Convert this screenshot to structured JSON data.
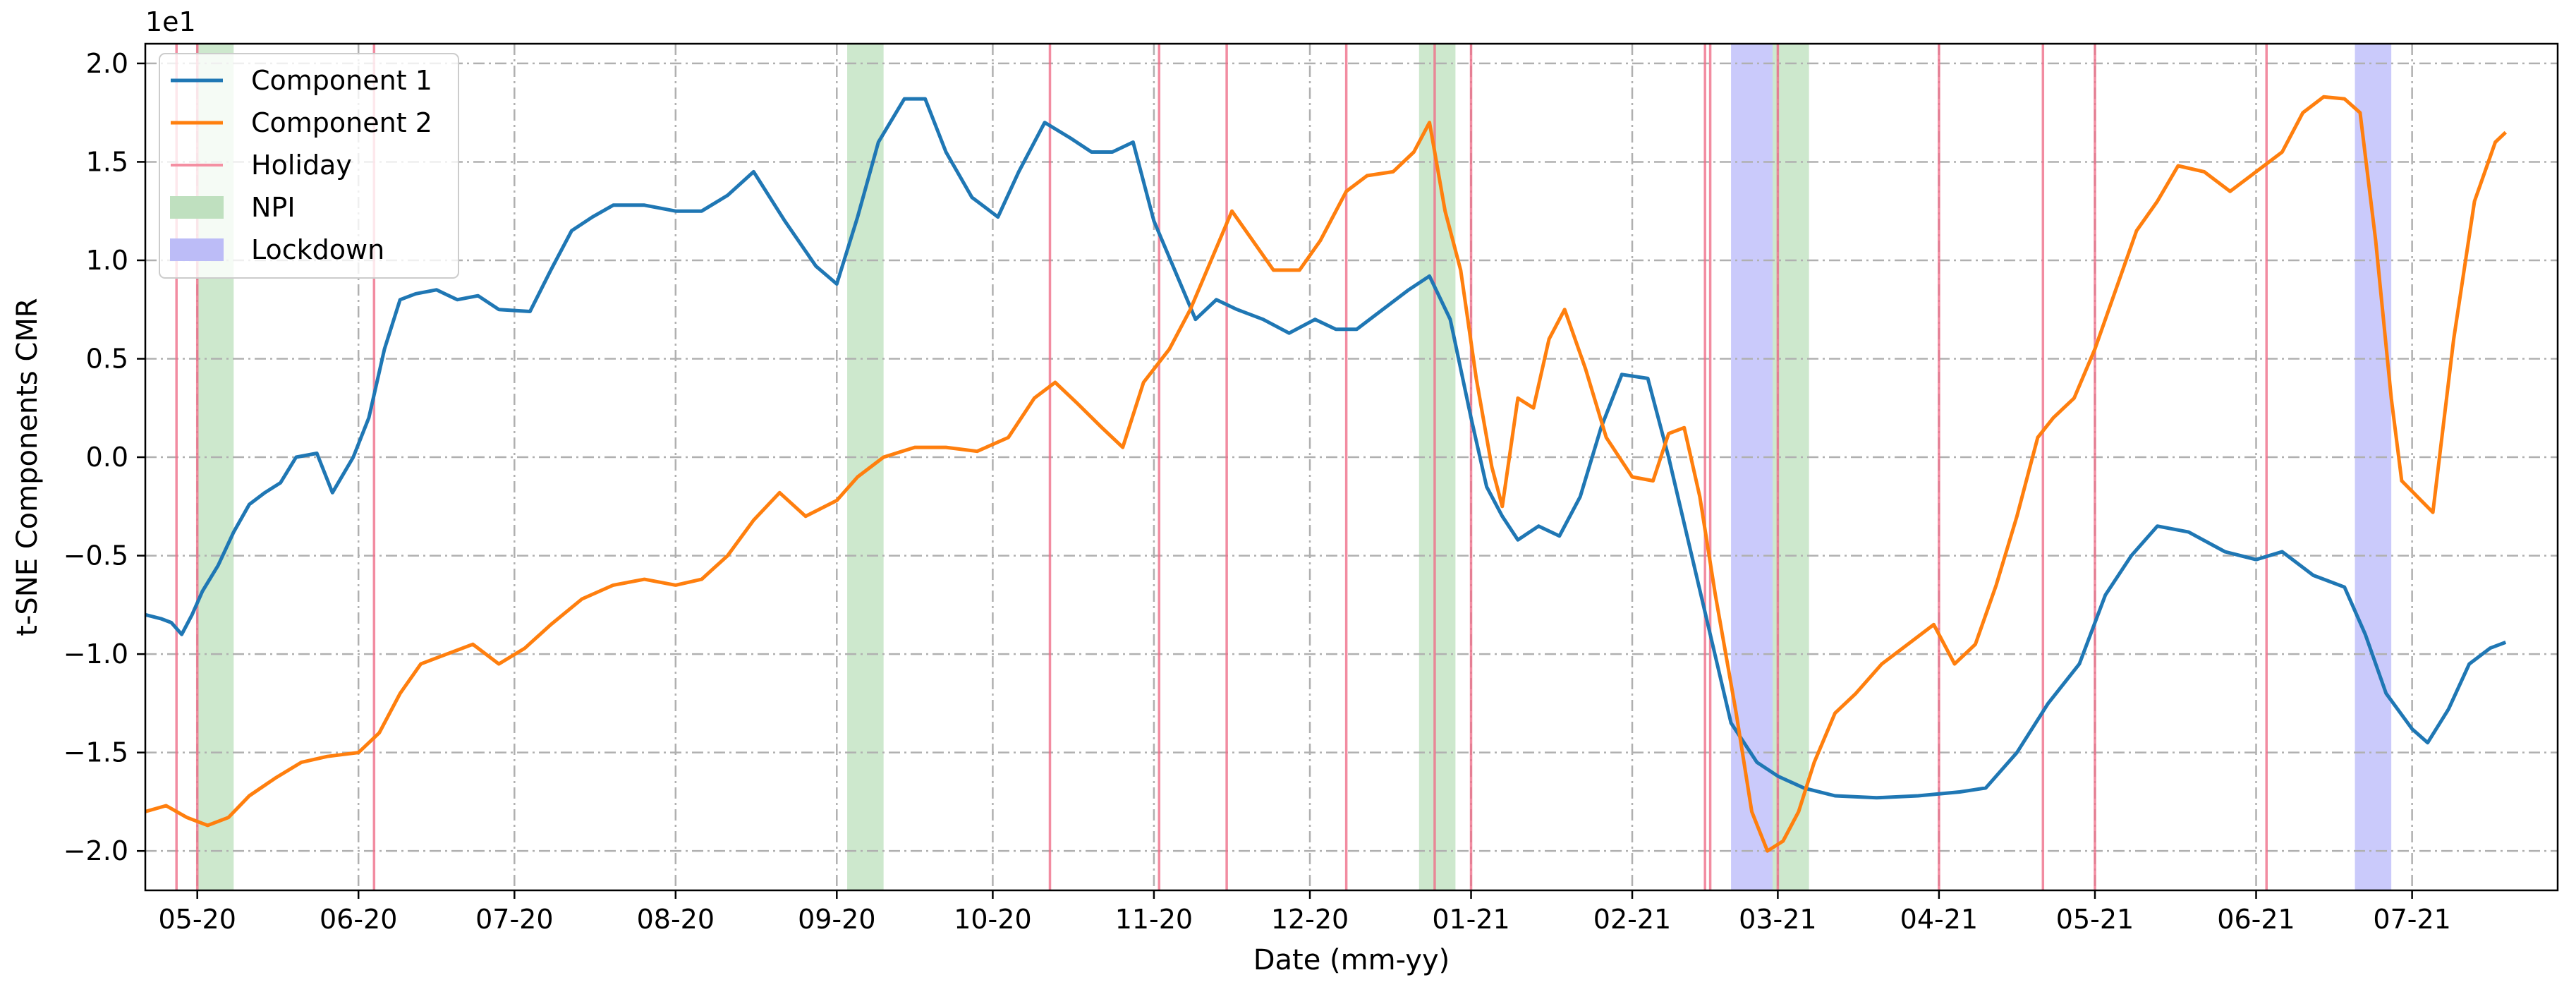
{
  "chart_data": {
    "type": "line",
    "xlabel": "Date (mm-yy)",
    "ylabel": "t-SNE Components CMR",
    "offset_text": "1e1",
    "x_range": [
      "2020-04-21",
      "2021-07-29"
    ],
    "ylim": [
      -2.2,
      2.1
    ],
    "grid": true,
    "legend_position": "upper-left",
    "x_ticks": [
      {
        "date": "2020-05-01",
        "label": "05-20"
      },
      {
        "date": "2020-06-01",
        "label": "06-20"
      },
      {
        "date": "2020-07-01",
        "label": "07-20"
      },
      {
        "date": "2020-08-01",
        "label": "08-20"
      },
      {
        "date": "2020-09-01",
        "label": "09-20"
      },
      {
        "date": "2020-10-01",
        "label": "10-20"
      },
      {
        "date": "2020-11-01",
        "label": "11-20"
      },
      {
        "date": "2020-12-01",
        "label": "12-20"
      },
      {
        "date": "2021-01-01",
        "label": "01-21"
      },
      {
        "date": "2021-02-01",
        "label": "02-21"
      },
      {
        "date": "2021-03-01",
        "label": "03-21"
      },
      {
        "date": "2021-04-01",
        "label": "04-21"
      },
      {
        "date": "2021-05-01",
        "label": "05-21"
      },
      {
        "date": "2021-06-01",
        "label": "06-21"
      },
      {
        "date": "2021-07-01",
        "label": "07-21"
      }
    ],
    "y_ticks": [
      {
        "value": -2.0,
        "label": "−2.0"
      },
      {
        "value": -1.5,
        "label": "−1.5"
      },
      {
        "value": -1.0,
        "label": "−1.0"
      },
      {
        "value": -0.5,
        "label": "−0.5"
      },
      {
        "value": 0.0,
        "label": "0.0"
      },
      {
        "value": 0.5,
        "label": "0.5"
      },
      {
        "value": 1.0,
        "label": "1.0"
      },
      {
        "value": 1.5,
        "label": "1.5"
      },
      {
        "value": 2.0,
        "label": "2.0"
      }
    ],
    "legend": [
      {
        "label": "Component 1",
        "kind": "line",
        "color": "#1f77b4"
      },
      {
        "label": "Component 2",
        "kind": "line",
        "color": "#ff7f0e"
      },
      {
        "label": "Holiday",
        "kind": "vline",
        "color": "#f48fa2"
      },
      {
        "label": "NPI",
        "kind": "span",
        "color": "#bfe0bf"
      },
      {
        "label": "Lockdown",
        "kind": "span",
        "color": "#bcbcf7"
      }
    ],
    "holidays": [
      "2020-04-27",
      "2020-05-01",
      "2020-06-04",
      "2020-10-12",
      "2020-11-02",
      "2020-11-15",
      "2020-12-08",
      "2020-12-25",
      "2021-01-01",
      "2021-02-15",
      "2021-02-16",
      "2021-03-01",
      "2021-04-01",
      "2021-04-21",
      "2021-05-01",
      "2021-06-03"
    ],
    "npi_periods": [
      {
        "start": "2020-05-01",
        "end": "2020-05-08"
      },
      {
        "start": "2020-09-03",
        "end": "2020-09-10"
      },
      {
        "start": "2020-12-22",
        "end": "2020-12-29"
      },
      {
        "start": "2021-02-28",
        "end": "2021-03-07"
      }
    ],
    "lockdown_periods": [
      {
        "start": "2021-02-20",
        "end": "2021-02-28"
      },
      {
        "start": "2021-06-20",
        "end": "2021-06-27"
      }
    ],
    "series": [
      {
        "name": "Component 1",
        "color": "#1f77b4",
        "points": [
          [
            "2020-04-21",
            -0.8
          ],
          [
            "2020-04-24",
            -0.82
          ],
          [
            "2020-04-26",
            -0.84
          ],
          [
            "2020-04-28",
            -0.9
          ],
          [
            "2020-04-30",
            -0.8
          ],
          [
            "2020-05-02",
            -0.68
          ],
          [
            "2020-05-05",
            -0.55
          ],
          [
            "2020-05-08",
            -0.38
          ],
          [
            "2020-05-11",
            -0.24
          ],
          [
            "2020-05-14",
            -0.18
          ],
          [
            "2020-05-17",
            -0.13
          ],
          [
            "2020-05-20",
            0.0
          ],
          [
            "2020-05-24",
            0.02
          ],
          [
            "2020-05-27",
            -0.18
          ],
          [
            "2020-05-31",
            0.0
          ],
          [
            "2020-06-03",
            0.2
          ],
          [
            "2020-06-06",
            0.55
          ],
          [
            "2020-06-09",
            0.8
          ],
          [
            "2020-06-12",
            0.83
          ],
          [
            "2020-06-16",
            0.85
          ],
          [
            "2020-06-20",
            0.8
          ],
          [
            "2020-06-24",
            0.82
          ],
          [
            "2020-06-28",
            0.75
          ],
          [
            "2020-07-04",
            0.74
          ],
          [
            "2020-07-08",
            0.95
          ],
          [
            "2020-07-12",
            1.15
          ],
          [
            "2020-07-16",
            1.22
          ],
          [
            "2020-07-20",
            1.28
          ],
          [
            "2020-07-26",
            1.28
          ],
          [
            "2020-08-01",
            1.25
          ],
          [
            "2020-08-06",
            1.25
          ],
          [
            "2020-08-11",
            1.33
          ],
          [
            "2020-08-16",
            1.45
          ],
          [
            "2020-08-22",
            1.2
          ],
          [
            "2020-08-28",
            0.97
          ],
          [
            "2020-09-01",
            0.88
          ],
          [
            "2020-09-05",
            1.22
          ],
          [
            "2020-09-09",
            1.6
          ],
          [
            "2020-09-14",
            1.82
          ],
          [
            "2020-09-18",
            1.82
          ],
          [
            "2020-09-22",
            1.55
          ],
          [
            "2020-09-27",
            1.32
          ],
          [
            "2020-10-02",
            1.22
          ],
          [
            "2020-10-06",
            1.45
          ],
          [
            "2020-10-11",
            1.7
          ],
          [
            "2020-10-16",
            1.62
          ],
          [
            "2020-10-20",
            1.55
          ],
          [
            "2020-10-24",
            1.55
          ],
          [
            "2020-10-28",
            1.6
          ],
          [
            "2020-11-01",
            1.2
          ],
          [
            "2020-11-05",
            0.95
          ],
          [
            "2020-11-09",
            0.7
          ],
          [
            "2020-11-13",
            0.8
          ],
          [
            "2020-11-17",
            0.75
          ],
          [
            "2020-11-22",
            0.7
          ],
          [
            "2020-11-27",
            0.63
          ],
          [
            "2020-12-02",
            0.7
          ],
          [
            "2020-12-06",
            0.65
          ],
          [
            "2020-12-10",
            0.65
          ],
          [
            "2020-12-15",
            0.75
          ],
          [
            "2020-12-20",
            0.85
          ],
          [
            "2020-12-24",
            0.92
          ],
          [
            "2020-12-28",
            0.7
          ],
          [
            "2021-01-01",
            0.2
          ],
          [
            "2021-01-04",
            -0.15
          ],
          [
            "2021-01-07",
            -0.3
          ],
          [
            "2021-01-10",
            -0.42
          ],
          [
            "2021-01-14",
            -0.35
          ],
          [
            "2021-01-18",
            -0.4
          ],
          [
            "2021-01-22",
            -0.2
          ],
          [
            "2021-01-26",
            0.15
          ],
          [
            "2021-01-30",
            0.42
          ],
          [
            "2021-02-04",
            0.4
          ],
          [
            "2021-02-08",
            0.0
          ],
          [
            "2021-02-12",
            -0.45
          ],
          [
            "2021-02-16",
            -0.9
          ],
          [
            "2021-02-20",
            -1.35
          ],
          [
            "2021-02-25",
            -1.55
          ],
          [
            "2021-03-01",
            -1.62
          ],
          [
            "2021-03-06",
            -1.68
          ],
          [
            "2021-03-12",
            -1.72
          ],
          [
            "2021-03-20",
            -1.73
          ],
          [
            "2021-03-28",
            -1.72
          ],
          [
            "2021-04-05",
            -1.7
          ],
          [
            "2021-04-10",
            -1.68
          ],
          [
            "2021-04-16",
            -1.5
          ],
          [
            "2021-04-22",
            -1.25
          ],
          [
            "2021-04-28",
            -1.05
          ],
          [
            "2021-05-03",
            -0.7
          ],
          [
            "2021-05-08",
            -0.5
          ],
          [
            "2021-05-13",
            -0.35
          ],
          [
            "2021-05-19",
            -0.38
          ],
          [
            "2021-05-26",
            -0.48
          ],
          [
            "2021-06-01",
            -0.52
          ],
          [
            "2021-06-06",
            -0.48
          ],
          [
            "2021-06-12",
            -0.6
          ],
          [
            "2021-06-18",
            -0.66
          ],
          [
            "2021-06-22",
            -0.9
          ],
          [
            "2021-06-26",
            -1.2
          ],
          [
            "2021-07-01",
            -1.38
          ],
          [
            "2021-07-04",
            -1.45
          ],
          [
            "2021-07-08",
            -1.28
          ],
          [
            "2021-07-12",
            -1.05
          ],
          [
            "2021-07-16",
            -0.97
          ],
          [
            "2021-07-19",
            -0.94
          ]
        ]
      },
      {
        "name": "Component 2",
        "color": "#ff7f0e",
        "points": [
          [
            "2020-04-21",
            -1.8
          ],
          [
            "2020-04-25",
            -1.77
          ],
          [
            "2020-04-29",
            -1.83
          ],
          [
            "2020-05-03",
            -1.87
          ],
          [
            "2020-05-07",
            -1.83
          ],
          [
            "2020-05-11",
            -1.72
          ],
          [
            "2020-05-16",
            -1.63
          ],
          [
            "2020-05-21",
            -1.55
          ],
          [
            "2020-05-26",
            -1.52
          ],
          [
            "2020-06-01",
            -1.5
          ],
          [
            "2020-06-05",
            -1.4
          ],
          [
            "2020-06-09",
            -1.2
          ],
          [
            "2020-06-13",
            -1.05
          ],
          [
            "2020-06-18",
            -1.0
          ],
          [
            "2020-06-23",
            -0.95
          ],
          [
            "2020-06-28",
            -1.05
          ],
          [
            "2020-07-03",
            -0.97
          ],
          [
            "2020-07-08",
            -0.85
          ],
          [
            "2020-07-14",
            -0.72
          ],
          [
            "2020-07-20",
            -0.65
          ],
          [
            "2020-07-26",
            -0.62
          ],
          [
            "2020-08-01",
            -0.65
          ],
          [
            "2020-08-06",
            -0.62
          ],
          [
            "2020-08-11",
            -0.5
          ],
          [
            "2020-08-16",
            -0.32
          ],
          [
            "2020-08-21",
            -0.18
          ],
          [
            "2020-08-26",
            -0.3
          ],
          [
            "2020-09-01",
            -0.22
          ],
          [
            "2020-09-05",
            -0.1
          ],
          [
            "2020-09-10",
            0.0
          ],
          [
            "2020-09-16",
            0.05
          ],
          [
            "2020-09-22",
            0.05
          ],
          [
            "2020-09-28",
            0.03
          ],
          [
            "2020-10-04",
            0.1
          ],
          [
            "2020-10-09",
            0.3
          ],
          [
            "2020-10-13",
            0.38
          ],
          [
            "2020-10-17",
            0.28
          ],
          [
            "2020-10-22",
            0.15
          ],
          [
            "2020-10-26",
            0.05
          ],
          [
            "2020-10-30",
            0.38
          ],
          [
            "2020-11-04",
            0.55
          ],
          [
            "2020-11-08",
            0.75
          ],
          [
            "2020-11-12",
            1.0
          ],
          [
            "2020-11-16",
            1.25
          ],
          [
            "2020-11-20",
            1.1
          ],
          [
            "2020-11-24",
            0.95
          ],
          [
            "2020-11-29",
            0.95
          ],
          [
            "2020-12-03",
            1.1
          ],
          [
            "2020-12-08",
            1.35
          ],
          [
            "2020-12-12",
            1.43
          ],
          [
            "2020-12-17",
            1.45
          ],
          [
            "2020-12-21",
            1.55
          ],
          [
            "2020-12-24",
            1.7
          ],
          [
            "2020-12-27",
            1.25
          ],
          [
            "2020-12-30",
            0.95
          ],
          [
            "2021-01-02",
            0.4
          ],
          [
            "2021-01-05",
            -0.05
          ],
          [
            "2021-01-07",
            -0.25
          ],
          [
            "2021-01-10",
            0.3
          ],
          [
            "2021-01-13",
            0.25
          ],
          [
            "2021-01-16",
            0.6
          ],
          [
            "2021-01-19",
            0.75
          ],
          [
            "2021-01-23",
            0.45
          ],
          [
            "2021-01-27",
            0.1
          ],
          [
            "2021-02-01",
            -0.1
          ],
          [
            "2021-02-05",
            -0.12
          ],
          [
            "2021-02-08",
            0.12
          ],
          [
            "2021-02-11",
            0.15
          ],
          [
            "2021-02-14",
            -0.2
          ],
          [
            "2021-02-17",
            -0.7
          ],
          [
            "2021-02-21",
            -1.3
          ],
          [
            "2021-02-24",
            -1.8
          ],
          [
            "2021-02-27",
            -2.0
          ],
          [
            "2021-03-02",
            -1.95
          ],
          [
            "2021-03-05",
            -1.8
          ],
          [
            "2021-03-08",
            -1.55
          ],
          [
            "2021-03-12",
            -1.3
          ],
          [
            "2021-03-16",
            -1.2
          ],
          [
            "2021-03-21",
            -1.05
          ],
          [
            "2021-03-26",
            -0.95
          ],
          [
            "2021-03-31",
            -0.85
          ],
          [
            "2021-04-04",
            -1.05
          ],
          [
            "2021-04-08",
            -0.95
          ],
          [
            "2021-04-12",
            -0.65
          ],
          [
            "2021-04-16",
            -0.3
          ],
          [
            "2021-04-20",
            0.1
          ],
          [
            "2021-04-23",
            0.2
          ],
          [
            "2021-04-27",
            0.3
          ],
          [
            "2021-05-01",
            0.55
          ],
          [
            "2021-05-05",
            0.85
          ],
          [
            "2021-05-09",
            1.15
          ],
          [
            "2021-05-13",
            1.3
          ],
          [
            "2021-05-17",
            1.48
          ],
          [
            "2021-05-22",
            1.45
          ],
          [
            "2021-05-27",
            1.35
          ],
          [
            "2021-06-01",
            1.45
          ],
          [
            "2021-06-06",
            1.55
          ],
          [
            "2021-06-10",
            1.75
          ],
          [
            "2021-06-14",
            1.83
          ],
          [
            "2021-06-18",
            1.82
          ],
          [
            "2021-06-21",
            1.75
          ],
          [
            "2021-06-24",
            1.1
          ],
          [
            "2021-06-27",
            0.3
          ],
          [
            "2021-06-29",
            -0.12
          ],
          [
            "2021-07-02",
            -0.2
          ],
          [
            "2021-07-05",
            -0.28
          ],
          [
            "2021-07-09",
            0.6
          ],
          [
            "2021-07-13",
            1.3
          ],
          [
            "2021-07-17",
            1.6
          ],
          [
            "2021-07-19",
            1.65
          ]
        ]
      }
    ]
  }
}
